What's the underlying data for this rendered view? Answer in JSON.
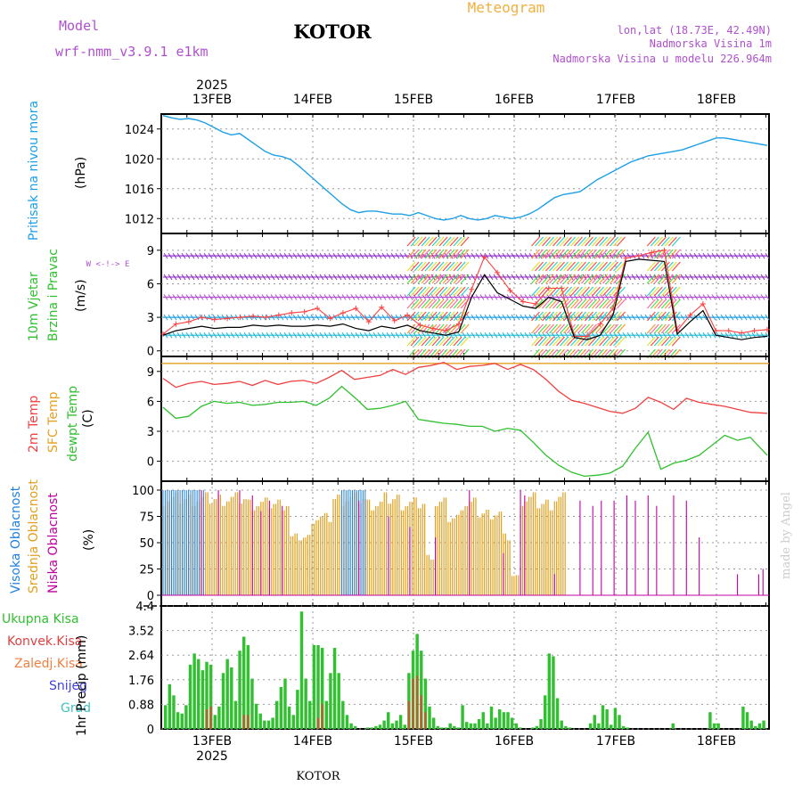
{
  "header": {
    "model_label": "Model",
    "model_name": "wrf-nmm_v3.9.1 e1km",
    "station": "KOTOR",
    "meteogram": "Meteogram",
    "lonlat": "lon,lat (18.73E, 42.49N)",
    "elevation": "Nadmorska Visina 1m",
    "model_elevation": "Nadmorska Visina u modelu 226.964m",
    "bottom_station": "KOTOR",
    "credit": "made by Angel"
  },
  "time_axis": {
    "year": "2025",
    "days": [
      "13FEB",
      "14FEB",
      "15FEB",
      "16FEB",
      "17FEB",
      "18FEB"
    ]
  },
  "colors": {
    "pressure": "#1ea0e6",
    "temp2m": "#f04040",
    "sfc_temp": "#e6a020",
    "dewpoint": "#30c030",
    "high_cloud": "#2080e0",
    "mid_cloud": "#e0a020",
    "low_cloud": "#c000a0",
    "precip": "#30c030",
    "conv_precip": "#e04040"
  },
  "chart_data": [
    {
      "type": "line",
      "name": "pressure",
      "title": "Pritisak na nivou mora",
      "ylabel": "(hPa)",
      "ylim": [
        1010,
        1026
      ],
      "yticks": [
        "1012",
        "1016",
        "1020",
        "1024"
      ],
      "x_hours": [
        0,
        2,
        4,
        6,
        8,
        10,
        12,
        14,
        16,
        18,
        20,
        22,
        24,
        26,
        28,
        30,
        32,
        34,
        36,
        38,
        40,
        42,
        44,
        46,
        48,
        50,
        52,
        54,
        56,
        58,
        60,
        62,
        64,
        66,
        68,
        70,
        72,
        74,
        76,
        78,
        80,
        82,
        84,
        86,
        88,
        90,
        92,
        94,
        96,
        98,
        100,
        102,
        104,
        106,
        108,
        110,
        112,
        114,
        116,
        118,
        120,
        122,
        124,
        126,
        128,
        130,
        132,
        134,
        136,
        138,
        140,
        142
      ],
      "values": [
        1025.8,
        1025.5,
        1025.3,
        1025.4,
        1025.2,
        1024.8,
        1024.2,
        1023.6,
        1023.2,
        1023.4,
        1022.6,
        1021.8,
        1021.0,
        1020.5,
        1020.3,
        1019.9,
        1019.0,
        1018.0,
        1017.0,
        1016.0,
        1015.0,
        1014.0,
        1013.2,
        1012.8,
        1013.0,
        1013.0,
        1012.8,
        1012.6,
        1012.6,
        1012.4,
        1012.8,
        1012.4,
        1012.0,
        1011.8,
        1012.0,
        1012.4,
        1012.0,
        1011.8,
        1012.0,
        1012.4,
        1012.2,
        1012.0,
        1012.2,
        1012.6,
        1013.2,
        1014.0,
        1014.8,
        1015.2,
        1015.4,
        1015.6,
        1016.4,
        1017.2,
        1017.8,
        1018.4,
        1019.0,
        1019.6,
        1020.0,
        1020.4,
        1020.6,
        1020.8,
        1021.0,
        1021.2,
        1021.6,
        1022.0,
        1022.4,
        1022.8,
        1022.8,
        1022.6,
        1022.4,
        1022.2,
        1022.0,
        1021.8
      ]
    },
    {
      "type": "line",
      "name": "wind",
      "title": "10m Vjetar Brzina i Pravac",
      "ylabel": "(m/s)",
      "ylim": [
        -0.5,
        10.5
      ],
      "yticks": [
        "0",
        "3",
        "6",
        "9"
      ],
      "direction_legend": "W <-!-> E",
      "x_hours": [
        0,
        3,
        6,
        9,
        12,
        15,
        18,
        21,
        24,
        27,
        30,
        33,
        36,
        39,
        42,
        45,
        48,
        51,
        54,
        57,
        60,
        63,
        66,
        69,
        72,
        75,
        78,
        81,
        84,
        87,
        90,
        93,
        96,
        99,
        102,
        105,
        108,
        111,
        114,
        117,
        120,
        123,
        126,
        129,
        132,
        135,
        138,
        141
      ],
      "speed": [
        1.4,
        1.8,
        2.0,
        2.2,
        2.0,
        2.1,
        2.1,
        2.3,
        2.2,
        2.3,
        2.2,
        2.2,
        2.3,
        2.2,
        2.4,
        2.0,
        1.8,
        2.2,
        2.0,
        2.3,
        1.8,
        1.6,
        1.4,
        1.7,
        4.8,
        6.8,
        5.2,
        4.6,
        4.0,
        3.8,
        4.8,
        4.4,
        1.2,
        1.0,
        1.4,
        3.2,
        8.0,
        8.2,
        8.1,
        8.0,
        1.5,
        2.6,
        3.6,
        1.4,
        1.2,
        1.0,
        1.2,
        1.3
      ],
      "gust": [
        1.5,
        2.4,
        2.6,
        3.0,
        2.8,
        2.9,
        3.0,
        3.1,
        3.0,
        3.2,
        3.4,
        3.5,
        3.8,
        2.9,
        3.4,
        3.8,
        2.6,
        3.9,
        2.7,
        3.2,
        2.3,
        2.0,
        1.8,
        2.4,
        5.5,
        8.4,
        7.0,
        5.4,
        4.4,
        4.2,
        5.6,
        5.6,
        1.3,
        1.3,
        2.4,
        3.8,
        8.3,
        8.5,
        8.8,
        9.0,
        1.8,
        3.2,
        4.2,
        1.8,
        1.8,
        1.6,
        1.8,
        1.9
      ],
      "level_bands": [
        1.4,
        3.0,
        4.8,
        6.6,
        8.5
      ],
      "storm_windows_hours": [
        [
          57,
          70
        ],
        [
          86,
          106
        ],
        [
          113,
          119
        ]
      ]
    },
    {
      "type": "line",
      "name": "temperature",
      "title": "2m Temp / SFC Temp / dewpt Temp",
      "ylabel": "(C)",
      "ylim": [
        -2,
        10.5
      ],
      "yticks": [
        "0",
        "3",
        "6",
        "9"
      ],
      "x_hours": [
        0,
        3,
        6,
        9,
        12,
        15,
        18,
        21,
        24,
        27,
        30,
        33,
        36,
        39,
        42,
        45,
        48,
        51,
        54,
        57,
        60,
        63,
        66,
        69,
        72,
        75,
        78,
        81,
        84,
        87,
        90,
        93,
        96,
        99,
        102,
        105,
        108,
        111,
        114,
        117,
        120,
        123,
        126,
        129,
        132,
        135,
        138,
        142
      ],
      "temp2m": [
        8.3,
        7.4,
        7.8,
        8.0,
        7.7,
        7.8,
        8.0,
        7.6,
        8.1,
        7.7,
        8.0,
        8.1,
        7.8,
        8.4,
        9.1,
        8.2,
        8.4,
        8.6,
        9.2,
        8.7,
        9.4,
        9.6,
        9.9,
        9.2,
        9.5,
        9.6,
        9.8,
        9.2,
        9.7,
        9.2,
        8.2,
        7.0,
        6.1,
        5.8,
        5.4,
        5.0,
        4.8,
        5.3,
        6.4,
        5.9,
        5.2,
        6.3,
        5.9,
        5.7,
        5.5,
        5.2,
        4.9,
        4.8
      ],
      "sfc_temp_const": 9.8,
      "dewpoint": [
        5.4,
        4.3,
        4.5,
        5.5,
        6.0,
        5.8,
        5.9,
        5.6,
        5.7,
        5.9,
        5.9,
        6.0,
        5.6,
        6.3,
        7.5,
        6.4,
        5.2,
        5.3,
        5.6,
        6.0,
        4.2,
        4.0,
        3.8,
        3.7,
        3.5,
        3.5,
        3.0,
        3.3,
        3.1,
        1.9,
        0.6,
        -0.4,
        -1.1,
        -1.5,
        -1.4,
        -1.2,
        -0.5,
        1.3,
        2.9,
        -0.8,
        -0.2,
        0.1,
        0.6,
        1.6,
        2.6,
        2.1,
        2.4,
        0.6
      ]
    },
    {
      "type": "bar",
      "name": "cloud_cover",
      "title": "Visoka Oblacnost / Srednja Oblacnost / Niska Oblacnost",
      "ylabel": "(%)",
      "ylim": [
        0,
        100
      ],
      "yticks": [
        "0",
        "25",
        "50",
        "75",
        "100"
      ],
      "period_hours": 1,
      "high_cloud_hours": [
        [
          0,
          10
        ],
        [
          42,
          48
        ]
      ],
      "mid_cloud_profile": [
        [
          0,
          100
        ],
        [
          20,
          95
        ],
        [
          30,
          60
        ],
        [
          35,
          80
        ],
        [
          40,
          100
        ],
        [
          48,
          95
        ],
        [
          52,
          100
        ],
        [
          56,
          95
        ],
        [
          62,
          40
        ],
        [
          64,
          95
        ],
        [
          67,
          80
        ],
        [
          70,
          95
        ],
        [
          74,
          85
        ],
        [
          80,
          60
        ],
        [
          82,
          20
        ],
        [
          84,
          100
        ],
        [
          88,
          95
        ],
        [
          92,
          100
        ],
        [
          95,
          0
        ]
      ],
      "low_cloud_spikes": [
        [
          9,
          100
        ],
        [
          13,
          100
        ],
        [
          18,
          100
        ],
        [
          21,
          95
        ],
        [
          23,
          80
        ],
        [
          25,
          90
        ],
        [
          28,
          85
        ],
        [
          46,
          90
        ],
        [
          53,
          75
        ],
        [
          58,
          65
        ],
        [
          64,
          55
        ],
        [
          72,
          100
        ],
        [
          80,
          40
        ],
        [
          84,
          100
        ],
        [
          85,
          95
        ],
        [
          92,
          20
        ],
        [
          98,
          90
        ],
        [
          101,
          85
        ],
        [
          103,
          90
        ],
        [
          106,
          90
        ],
        [
          109,
          95
        ],
        [
          111,
          90
        ],
        [
          114,
          95
        ],
        [
          116,
          85
        ],
        [
          120,
          95
        ],
        [
          123,
          90
        ],
        [
          126,
          55
        ],
        [
          135,
          20
        ],
        [
          140,
          20
        ],
        [
          141,
          25
        ]
      ]
    },
    {
      "type": "bar",
      "name": "precipitation",
      "title": "Ukupna Kisa / Konvek.Kisa / Zaledj.Kisa / Snijeg / Grad",
      "ylabel": "1hr Precip (mm)",
      "ylim": [
        0,
        4.4
      ],
      "yticks": [
        "0",
        "0.88",
        "1.76",
        "2.64",
        "3.52",
        "4.4"
      ],
      "values": [
        0.85,
        1.6,
        1.2,
        0.6,
        0.55,
        0.85,
        2.3,
        2.7,
        2.5,
        2.1,
        2.4,
        2.3,
        0.5,
        0.8,
        2.0,
        2.5,
        2.2,
        1.0,
        2.8,
        3.3,
        3.0,
        1.8,
        0.9,
        0.55,
        0.3,
        0.3,
        0.4,
        1.0,
        1.5,
        1.8,
        0.8,
        0.5,
        1.4,
        4.2,
        1.8,
        1.0,
        3.0,
        3.0,
        2.9,
        1.0,
        2.0,
        2.9,
        2.0,
        1.0,
        0.5,
        0.2,
        0.1,
        0.0,
        0.0,
        0.05,
        0.05,
        0.1,
        0.15,
        0.3,
        0.6,
        0.2,
        0.3,
        0.5,
        0.15,
        2.0,
        2.8,
        3.4,
        2.8,
        1.8,
        0.8,
        0.4,
        0.1,
        0.05,
        0.05,
        0.2,
        0.1,
        0.05,
        0.85,
        0.25,
        0.2,
        0.2,
        0.35,
        0.6,
        0.2,
        0.8,
        0.4,
        0.7,
        0.6,
        0.6,
        0.4,
        0.2,
        0.05,
        0.0,
        0.0,
        0.05,
        0.1,
        0.35,
        1.2,
        2.7,
        2.6,
        1.1,
        0.3,
        0.1,
        0.05,
        0.0,
        0.0,
        0.0,
        0.0,
        0.2,
        0.5,
        0.2,
        0.85,
        0.7,
        0.15,
        0.75,
        0.5,
        0.1,
        0.05,
        0.0,
        0.0,
        0.0,
        0.0,
        0.0,
        0.0,
        0.0,
        0.0,
        0.0,
        0.0,
        0.2,
        0.0,
        0.0,
        0.0,
        0.0,
        0.0,
        0.0,
        0.0,
        0.0,
        0.6,
        0.2,
        0.2,
        0.0,
        0.0,
        0.0,
        0.0,
        0.0,
        0.8,
        0.6,
        0.3,
        0.1,
        0.2,
        0.3
      ],
      "conv_values": [
        0,
        0,
        0,
        0,
        0,
        0,
        0,
        0,
        0,
        0,
        0.7,
        0.8,
        0,
        0,
        0,
        0,
        0,
        0,
        0,
        0.5,
        0.5,
        0,
        0,
        0,
        0,
        0,
        0,
        0,
        0,
        0,
        0,
        0,
        0,
        0,
        0,
        0,
        0,
        0.4,
        0.9,
        0,
        0,
        0,
        0,
        0,
        0,
        0,
        0,
        0,
        0,
        0,
        0,
        0,
        0,
        0,
        0,
        0,
        0,
        0,
        0,
        1.0,
        1.8,
        1.9,
        1.2,
        0.6,
        0,
        0,
        0,
        0,
        0,
        0,
        0,
        0,
        0,
        0,
        0,
        0,
        0,
        0,
        0,
        0,
        0,
        0,
        0,
        0,
        0,
        0,
        0,
        0,
        0,
        0,
        0,
        0,
        0,
        0,
        0,
        0,
        0,
        0,
        0,
        0,
        0,
        0,
        0,
        0,
        0,
        0,
        0,
        0,
        0,
        0,
        0,
        0,
        0,
        0,
        0,
        0,
        0,
        0,
        0,
        0,
        0,
        0,
        0,
        0,
        0,
        0,
        0,
        0,
        0,
        0,
        0,
        0,
        0,
        0,
        0,
        0,
        0,
        0,
        0,
        0,
        0,
        0,
        0
      ]
    }
  ],
  "panel_labels": {
    "pressure": {
      "a": "Pritisak na nivou mora",
      "unit": "(hPa)"
    },
    "wind": {
      "a": "10m Vjetar",
      "b": "Brzina i Pravac",
      "unit": "(m/s)",
      "dir": "W <-!-> E"
    },
    "temp": {
      "a": "2m Temp",
      "b": "SFC Temp",
      "c": "dewpt Temp",
      "unit": "(C)"
    },
    "cloud": {
      "a": "Visoka Oblacnost",
      "b": "Srednja Oblacnost",
      "c": "Niska Oblacnost",
      "unit": "(%)"
    },
    "precip": {
      "a": "Ukupna Kisa",
      "b": "Konvek.Kisa",
      "c": "Zaledj.Kisa",
      "d": "Snijeg",
      "e": "Grad",
      "unit": "1hr Precip (mm)"
    }
  }
}
